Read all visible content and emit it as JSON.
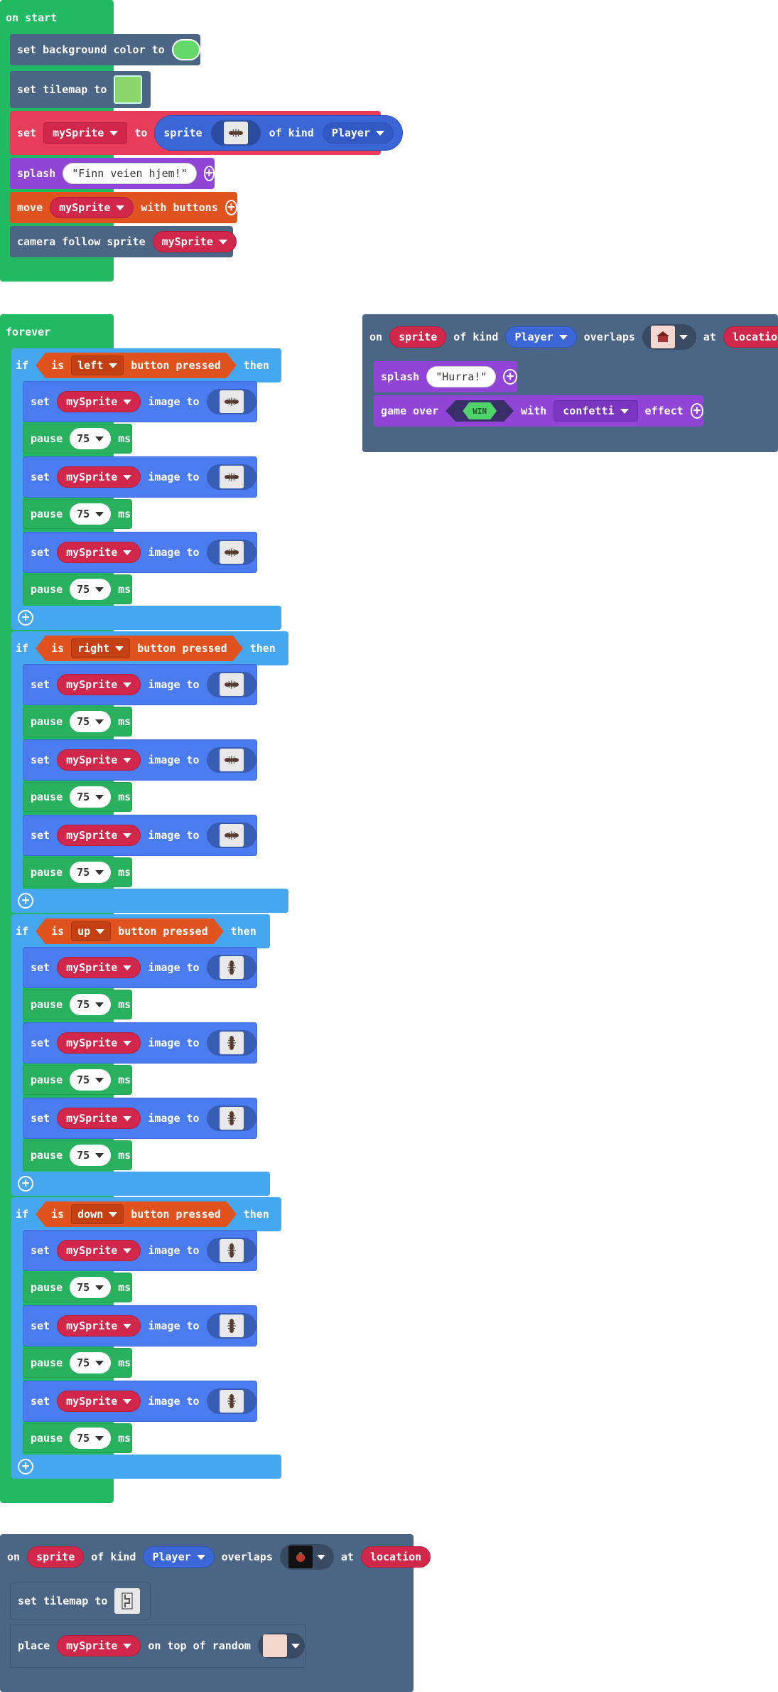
{
  "on_start": {
    "hat": "on start",
    "set_bg": {
      "label": "set background color to",
      "color": "#66d86a"
    },
    "set_tilemap": {
      "label": "set tilemap to"
    },
    "set_sprite": {
      "set": "set",
      "var": "mySprite",
      "to": "to",
      "sprite": "sprite",
      "of_kind": "of kind",
      "kind": "Player"
    },
    "splash": {
      "label": "splash",
      "text": "\"Finn veien hjem!\""
    },
    "move": {
      "label": "move",
      "var": "mySprite",
      "with": "with buttons"
    },
    "camera": {
      "label": "camera follow sprite",
      "var": "mySprite"
    }
  },
  "forever": {
    "hat": "forever",
    "blocks": [
      {
        "if": "if",
        "is": "is",
        "button": "left",
        "pressed": "button pressed",
        "then": "then"
      },
      {
        "if": "if",
        "is": "is",
        "button": "right",
        "pressed": "button pressed",
        "then": "then"
      },
      {
        "if": "if",
        "is": "is",
        "button": "up",
        "pressed": "button pressed",
        "then": "then"
      },
      {
        "if": "if",
        "is": "is",
        "button": "down",
        "pressed": "button pressed",
        "then": "then"
      }
    ],
    "set": "set",
    "var": "mySprite",
    "image_to": "image to",
    "pause": "pause",
    "ms": "ms",
    "value": "75"
  },
  "overlap1": {
    "on": "on",
    "sprite": "sprite",
    "of_kind": "of kind",
    "kind": "Player",
    "overlaps": "overlaps",
    "at": "at",
    "location": "location",
    "splash": "splash",
    "splash_text": "\"Hurra!\"",
    "game_over": "game over",
    "win": "WIN",
    "with": "with",
    "effect_name": "confetti",
    "effect": "effect"
  },
  "overlap2": {
    "on": "on",
    "sprite": "sprite",
    "of_kind": "of kind",
    "kind": "Player",
    "overlaps": "overlaps",
    "at": "at",
    "location": "location",
    "set_tilemap": "set tilemap to",
    "place": "place",
    "var": "mySprite",
    "on_top": "on top of random"
  }
}
